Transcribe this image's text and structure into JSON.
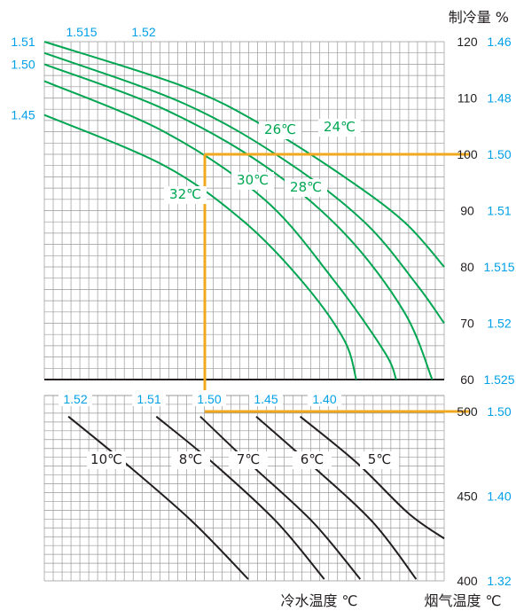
{
  "chart_data": {
    "type": "line",
    "title": "",
    "grid": true,
    "colors": {
      "grid": "#999999",
      "upper_curves": "#00a651",
      "lower_curves": "#231f20",
      "accent": "#00a0e9",
      "highlight": "#f0a81e",
      "text": "#231f20"
    },
    "axis_labels": {
      "capacity": "制冷量 %",
      "chilled_water": "冷水温度 ℃",
      "flue_gas": "烟气温度 ℃"
    },
    "upper_panel": {
      "y_axis": "制冷量 %",
      "ylim": [
        60,
        120
      ],
      "y_ticks": [
        "120",
        "110",
        "100",
        "90",
        "80",
        "70",
        "60"
      ],
      "cop_right_ticks": [
        {
          "at": 120,
          "label": "1.46"
        },
        {
          "at": 110,
          "label": "1.48"
        },
        {
          "at": 100,
          "label": "1.50"
        },
        {
          "at": 90,
          "label": "1.51"
        },
        {
          "at": 80,
          "label": "1.515"
        },
        {
          "at": 70,
          "label": "1.52"
        },
        {
          "at": 60,
          "label": "1.525"
        }
      ],
      "cop_left_labels": [
        {
          "at": 120,
          "label": "1.51"
        },
        {
          "at": 116,
          "label": "1.50"
        },
        {
          "at": 107,
          "label": "1.45"
        }
      ],
      "cop_top_labels": [
        "1.515",
        "1.52"
      ],
      "series": [
        {
          "name": "24℃",
          "points": [
            [
              0,
              120
            ],
            [
              0.35,
              112
            ],
            [
              0.55,
              105
            ],
            [
              0.75,
              96
            ],
            [
              0.9,
              88
            ],
            [
              1,
              80
            ]
          ]
        },
        {
          "name": "26℃",
          "points": [
            [
              0,
              118
            ],
            [
              0.35,
              109
            ],
            [
              0.6,
              99
            ],
            [
              0.8,
              88
            ],
            [
              0.93,
              77
            ],
            [
              1,
              70
            ]
          ]
        },
        {
          "name": "28℃",
          "points": [
            [
              0,
              116
            ],
            [
              0.3,
              108
            ],
            [
              0.55,
              98
            ],
            [
              0.75,
              86
            ],
            [
              0.9,
              72
            ],
            [
              0.97,
              60
            ]
          ]
        },
        {
          "name": "30℃",
          "points": [
            [
              0,
              113
            ],
            [
              0.3,
              104
            ],
            [
              0.55,
              92
            ],
            [
              0.72,
              78
            ],
            [
              0.85,
              65
            ],
            [
              0.88,
              60
            ]
          ]
        },
        {
          "name": "32℃",
          "points": [
            [
              0,
              107
            ],
            [
              0.3,
              98
            ],
            [
              0.5,
              88
            ],
            [
              0.65,
              77
            ],
            [
              0.75,
              67
            ],
            [
              0.78,
              60
            ]
          ]
        }
      ],
      "highlight": {
        "capacity": 100,
        "label": "1.50"
      }
    },
    "lower_panel": {
      "y_axis": "烟气温度 ℃",
      "ylim": [
        400,
        500
      ],
      "y_ticks": [
        "500",
        "450",
        "400"
      ],
      "cop_right_ticks": [
        {
          "at": 500,
          "label": "1.50"
        },
        {
          "at": 450,
          "label": "1.40"
        },
        {
          "at": 400,
          "label": "1.32"
        }
      ],
      "cop_top_labels": [
        "1.52",
        "1.51",
        "1.50",
        "1.45",
        "1.40"
      ],
      "series": [
        {
          "name": "10℃",
          "points": [
            [
              0.06,
              497
            ],
            [
              0.2,
              470
            ],
            [
              0.37,
              435
            ],
            [
              0.51,
              401
            ]
          ]
        },
        {
          "name": "8℃",
          "points": [
            [
              0.28,
              497
            ],
            [
              0.42,
              470
            ],
            [
              0.58,
              435
            ],
            [
              0.7,
              401
            ]
          ]
        },
        {
          "name": "7℃",
          "points": [
            [
              0.39,
              497
            ],
            [
              0.51,
              470
            ],
            [
              0.67,
              435
            ],
            [
              0.79,
              401
            ]
          ]
        },
        {
          "name": "6℃",
          "points": [
            [
              0.53,
              497
            ],
            [
              0.66,
              470
            ],
            [
              0.82,
              435
            ],
            [
              0.93,
              401
            ]
          ]
        },
        {
          "name": "5℃",
          "points": [
            [
              0.64,
              497
            ],
            [
              0.78,
              470
            ],
            [
              0.91,
              440
            ],
            [
              1,
              425
            ]
          ]
        }
      ],
      "highlight": {
        "flue_gas": 500,
        "label": "1.50"
      }
    }
  }
}
